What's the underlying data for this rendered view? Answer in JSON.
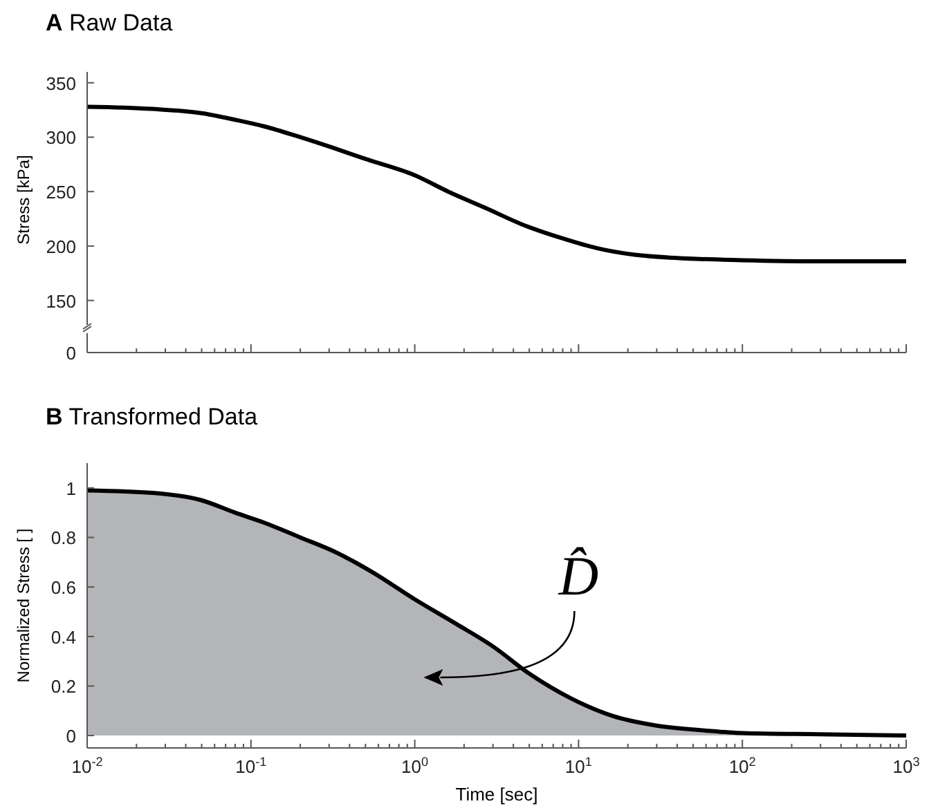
{
  "chart_data": [
    {
      "type": "line",
      "title": "A Raw Data",
      "ylabel": "Stress [kPa]",
      "log": "x",
      "tick_labels": "y",
      "line_style": "solid",
      "x": [
        0.01,
        0.025,
        0.05,
        0.08,
        0.12,
        0.2,
        0.32,
        0.5,
        1,
        1.6,
        2.7,
        4.5,
        8,
        13,
        22,
        40,
        100,
        300,
        1000
      ],
      "series": [
        {
          "color": "#000000",
          "values": [
            328,
            326,
            322,
            316,
            310,
            300,
            290,
            280,
            265,
            250,
            235,
            220,
            207,
            198,
            192,
            189,
            187,
            186,
            186
          ]
        }
      ],
      "annotations": [
        "0"
      ],
      "xlim": [
        0.01,
        1000
      ],
      "xticks": [
        {
          "value": 0.01,
          "label": null
        },
        {
          "value": 0.1,
          "label": null
        },
        {
          "value": 1,
          "label": null
        },
        {
          "value": 10,
          "label": null
        },
        {
          "value": 100,
          "label": null
        },
        {
          "value": 1000,
          "label": null
        }
      ],
      "ylim": [
        125,
        360
      ],
      "yticks": [
        150,
        200,
        250,
        300,
        350
      ]
    },
    {
      "type": "area",
      "title": "B Transformed Data",
      "xlabel": "Time [sec]",
      "ylabel": "Normalized Stress [ ]",
      "log": "x",
      "line_style": "solid",
      "x": [
        0.01,
        0.025,
        0.05,
        0.08,
        0.12,
        0.2,
        0.33,
        0.55,
        1,
        1.8,
        3,
        5,
        9,
        16,
        30,
        60,
        100,
        300,
        1000
      ],
      "series": [
        {
          "color": "#b4b5b8",
          "values": [
            0.99,
            0.98,
            0.95,
            0.9,
            0.86,
            0.8,
            0.74,
            0.66,
            0.55,
            0.45,
            0.36,
            0.25,
            0.15,
            0.08,
            0.04,
            0.02,
            0.01,
            0.005,
            0
          ]
        }
      ],
      "annotations": [
        "D̂"
      ],
      "xlim": [
        0.01,
        1000
      ],
      "xticks": [
        {
          "value": 0.01,
          "label": "10$^{-2}$"
        },
        {
          "value": 0.1,
          "label": "10$^{-1}$"
        },
        {
          "value": 1,
          "label": "10$^{0}$"
        },
        {
          "value": 10,
          "label": "10$^{1}$"
        },
        {
          "value": 100,
          "label": "10$^{2}$"
        },
        {
          "value": 1000,
          "label": "10$^{3}$"
        }
      ],
      "ylim": [
        -0.05,
        1.1
      ],
      "yticks": [
        0,
        0.2,
        0.4,
        0.6,
        0.8,
        1
      ]
    }
  ]
}
